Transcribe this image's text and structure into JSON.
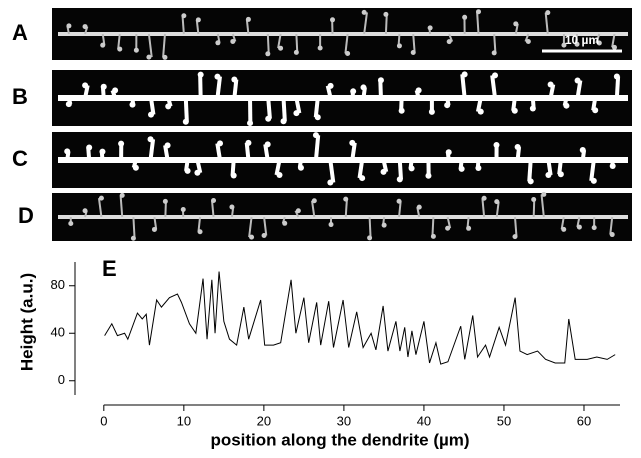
{
  "panels": [
    {
      "label": "A"
    },
    {
      "label": "B"
    },
    {
      "label": "C"
    },
    {
      "label": "D"
    }
  ],
  "scale_bar": "10 µm",
  "chart_data": {
    "type": "line",
    "title": "E",
    "xlabel": "position along the dendrite (µm)",
    "ylabel": "Height (a.u.)",
    "x": [
      0.1,
      1.0,
      1.7,
      2.6,
      3.0,
      4.2,
      4.8,
      5.3,
      5.7,
      6.6,
      7.2,
      8.2,
      9.2,
      9.7,
      10.7,
      11.5,
      12.4,
      12.9,
      13.5,
      13.9,
      14.4,
      15.0,
      15.7,
      16.6,
      17.5,
      18.1,
      19.6,
      20.1,
      21.2,
      22.1,
      23.4,
      24.0,
      25.0,
      25.6,
      26.6,
      27.1,
      28.1,
      28.7,
      29.9,
      30.6,
      31.6,
      32.4,
      33.4,
      34.0,
      34.9,
      35.5,
      36.5,
      37.0,
      37.6,
      38.0,
      38.5,
      39.0,
      40.0,
      40.7,
      41.5,
      42.1,
      43.0,
      44.6,
      45.1,
      46.1,
      46.7,
      47.7,
      48.2,
      49.4,
      50.2,
      51.4,
      52.0,
      52.9,
      54.2,
      55.2,
      56.4,
      57.6,
      58.1,
      58.9,
      60.4,
      61.6,
      62.9,
      63.9
    ],
    "series": [
      {
        "color": "#000000",
        "values": [
          38,
          48,
          38,
          40,
          35,
          57,
          52,
          56,
          30,
          68,
          62,
          70,
          73,
          66,
          48,
          40,
          86,
          35,
          85,
          40,
          92,
          50,
          35,
          30,
          62,
          35,
          68,
          30,
          30,
          32,
          85,
          40,
          70,
          32,
          66,
          30,
          67,
          28,
          68,
          28,
          58,
          28,
          40,
          26,
          63,
          25,
          50,
          25,
          45,
          20,
          42,
          22,
          50,
          15,
          32,
          14,
          16,
          46,
          18,
          55,
          20,
          30,
          20,
          45,
          30,
          70,
          25,
          22,
          25,
          18,
          15,
          15,
          52,
          18,
          18,
          20,
          18,
          22
        ]
      }
    ],
    "xlim": [
      -3.6,
      66
    ],
    "ylim": [
      -12,
      100
    ],
    "xticks": [
      0,
      10,
      20,
      30,
      40,
      50,
      60
    ],
    "yticks": [
      0,
      40,
      80
    ]
  }
}
